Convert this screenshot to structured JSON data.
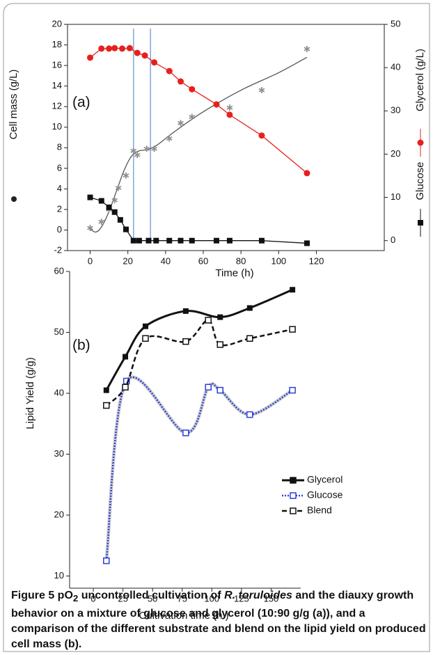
{
  "chart_data": [
    {
      "type": "line",
      "label": "(a)",
      "xlabel": "Time (h)",
      "ylabel": "Cell mass (g/L)",
      "y2labels": [
        "Glucose",
        "Glycerol (g/L)"
      ],
      "xlim": [
        -12,
        156
      ],
      "xticks": [
        0,
        20,
        40,
        60,
        80,
        100,
        120
      ],
      "ylim": [
        -2,
        20
      ],
      "yticks": [
        -2,
        0,
        2,
        4,
        6,
        8,
        10,
        12,
        14,
        16,
        18,
        20
      ],
      "y2lim": [
        -2.3,
        50
      ],
      "y2ticks": [
        0,
        10,
        20,
        30,
        40,
        50
      ],
      "series": [
        {
          "color": "#909090",
          "marker": "star",
          "x": [
            0,
            6,
            10,
            13,
            15,
            19,
            23,
            25,
            30,
            34,
            42,
            48,
            54,
            67,
            74,
            91,
            115
          ],
          "values": [
            0.2,
            0.8,
            2,
            2.9,
            4.1,
            5.3,
            7.7,
            7.3,
            7.9,
            7.9,
            8.9,
            10.4,
            11,
            12.2,
            11.9,
            13.6,
            17.6
          ]
        },
        {
          "axis": "y2",
          "color": "#e8201c",
          "marker": "circle",
          "line": "solid",
          "x": [
            0,
            6,
            10,
            13,
            17,
            21,
            25,
            29,
            34,
            42,
            48,
            54,
            67,
            74,
            91,
            115
          ],
          "values": [
            42.3,
            44.4,
            44.4,
            44.5,
            44.4,
            44.5,
            43.4,
            42.8,
            41.2,
            39.2,
            36.8,
            35,
            31.5,
            29.1,
            24.3,
            15.6
          ]
        },
        {
          "axis": "y2",
          "color": "#111111",
          "marker": "square",
          "line": "solid",
          "x": [
            0,
            6,
            10,
            13,
            16,
            19,
            23,
            26,
            31,
            35,
            42,
            48,
            54,
            67,
            74,
            91,
            115
          ],
          "values": [
            10,
            9.2,
            7.7,
            6.6,
            4.8,
            2.6,
            0,
            0,
            0,
            0,
            0,
            0,
            0,
            0,
            0,
            0,
            -0.6
          ]
        }
      ],
      "fit": {
        "color": "#555555",
        "x": [
          0,
          3,
          6,
          10,
          14,
          18,
          22,
          26,
          30,
          35,
          45,
          60,
          80,
          100,
          115
        ],
        "values": [
          0.1,
          -0.2,
          0.3,
          1.8,
          3.8,
          5.8,
          7.2,
          7.7,
          7.8,
          8.2,
          9.6,
          11.5,
          13.6,
          15.3,
          16.8
        ]
      },
      "vlines": {
        "color": "#7fa6d6",
        "x": [
          23,
          32
        ]
      }
    },
    {
      "type": "line",
      "label": "(b)",
      "xlabel": "Cultivation time (h )",
      "ylabel": "Lipid Yield (g/g)",
      "xlim": [
        -20,
        175
      ],
      "xticks": [
        0,
        25,
        50,
        75,
        100,
        125,
        150
      ],
      "ylim": [
        8,
        60
      ],
      "yticks": [
        10,
        20,
        30,
        40,
        50,
        60
      ],
      "legend": "lower right",
      "series": [
        {
          "name": "Glycerol",
          "color": "#111111",
          "marker": "square",
          "line": "solid",
          "x": [
            11,
            27,
            44,
            78,
            107,
            132,
            168
          ],
          "values": [
            40.5,
            46,
            51,
            53.5,
            52.5,
            54,
            57
          ]
        },
        {
          "name": "Glucose",
          "color": "#2b3fd6",
          "marker": "open-square",
          "line": "dotted",
          "x": [
            11,
            28,
            78,
            97,
            107,
            132,
            168
          ],
          "values": [
            12.5,
            42,
            33.5,
            41,
            40.5,
            36.5,
            40.5
          ]
        },
        {
          "name": "Blend",
          "color": "#111111",
          "marker": "open-square",
          "line": "dashed",
          "x": [
            11,
            27,
            44,
            78,
            97,
            107,
            132,
            168
          ],
          "values": [
            38,
            41,
            49,
            48.5,
            52,
            48,
            49,
            50.5
          ]
        }
      ]
    }
  ],
  "caption": [
    "Figure 5",
    " pO",
    "2",
    " uncontrolled cultivation of ",
    "R. toruloides",
    " and the diauxy growth behavior on a mixture of glucose and glycerol (10:90 g/g (a)), and a comparison of the different substrate and blend on the lipid yield on produced cell mass (b)."
  ]
}
